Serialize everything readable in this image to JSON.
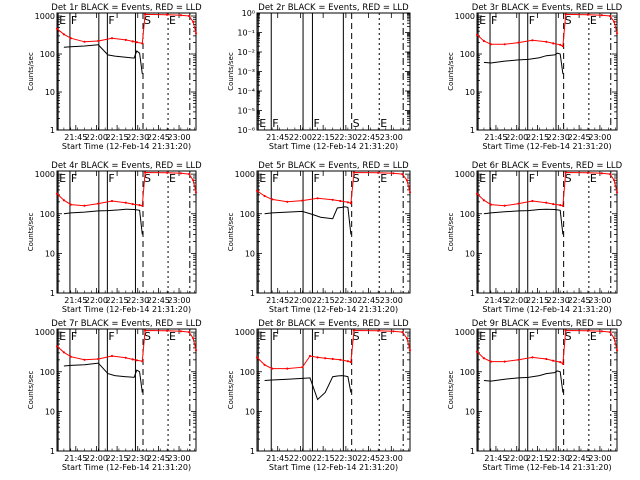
{
  "figure": {
    "start_time": "Start Time (12-Feb-14 21:31:20)",
    "ylabel": "Counts/sec",
    "x_ticks": [
      "21:45",
      "22:00",
      "22:15",
      "22:30",
      "22:45",
      "23:00"
    ],
    "x_tick_minutes": [
      13.67,
      28.67,
      43.67,
      58.67,
      73.67,
      88.67
    ],
    "event_marks": [
      {
        "label": "E",
        "min": 0.8,
        "style": "solid"
      },
      {
        "label": "F",
        "min": 9.4,
        "style": "solid"
      },
      {
        "label": "",
        "min": 30.4,
        "style": "solid"
      },
      {
        "label": "F",
        "min": 36.6,
        "style": "solid"
      },
      {
        "label": "",
        "min": 57.0,
        "style": "solid"
      },
      {
        "label": "S",
        "min": 62.5,
        "style": "dashed"
      },
      {
        "label": "E",
        "min": 80.7,
        "style": "dotted"
      },
      {
        "label": "",
        "min": 96.5,
        "style": "dashdot"
      }
    ],
    "colors": {
      "events": "#000000",
      "lld": "#ff0000"
    }
  },
  "chart_data": [
    {
      "type": "line",
      "title": "Det 1r BLACK = Events, RED = LLD",
      "xlabel": "Start Time (12-Feb-14 21:31:20)",
      "ylabel": "Counts/sec",
      "y_scale": "log",
      "yticks": [
        "1",
        "10",
        "100",
        "1000"
      ],
      "ylim": [
        1,
        1200
      ],
      "xlim_minutes": [
        0,
        101
      ],
      "series": [
        {
          "name": "BLACK = Events",
          "x": [
            5,
            10,
            20,
            30,
            37,
            42,
            50,
            56,
            58,
            60,
            62
          ],
          "y": [
            150,
            155,
            162,
            175,
            95,
            88,
            82,
            78,
            120,
            105,
            30
          ]
        },
        {
          "name": "RED = LLD",
          "x": [
            0,
            5,
            10,
            20,
            30,
            40,
            50,
            55,
            58,
            62,
            64,
            80,
            90,
            96,
            99,
            101
          ],
          "y": [
            460,
            330,
            260,
            210,
            220,
            260,
            235,
            215,
            205,
            190,
            1100,
            1080,
            1050,
            1000,
            700,
            350
          ]
        }
      ]
    },
    {
      "type": "line",
      "title": "Det 2r BLACK = Events, RED = LLD",
      "xlabel": "Start Time (12-Feb-14 21:31:20)",
      "ylabel": "Counts/sec",
      "y_scale": "log",
      "yticks": [
        "10⁻⁶",
        "10⁻⁵",
        "10⁻⁴",
        "10⁻³",
        "10⁻²",
        "10⁻¹",
        "10⁰"
      ],
      "ylim": [
        1e-06,
        1
      ],
      "xlim_minutes": [
        0,
        101
      ],
      "series": []
    },
    {
      "type": "line",
      "title": "Det 3r BLACK = Events, RED = LLD",
      "xlabel": "Start Time (12-Feb-14 21:31:20)",
      "ylabel": "Counts/sec",
      "y_scale": "log",
      "yticks": [
        "1",
        "10",
        "100",
        "1000"
      ],
      "ylim": [
        1,
        1200
      ],
      "xlim_minutes": [
        0,
        101
      ],
      "series": [
        {
          "name": "BLACK = Events",
          "x": [
            5,
            10,
            20,
            30,
            37,
            45,
            50,
            56,
            58,
            60,
            62
          ],
          "y": [
            60,
            58,
            65,
            70,
            72,
            80,
            90,
            95,
            105,
            100,
            30
          ]
        },
        {
          "name": "RED = LLD",
          "x": [
            0,
            5,
            10,
            20,
            30,
            40,
            50,
            55,
            60,
            62,
            64,
            80,
            90,
            96,
            99,
            101
          ],
          "y": [
            320,
            220,
            180,
            180,
            200,
            230,
            210,
            190,
            175,
            160,
            1100,
            1080,
            1050,
            1000,
            700,
            350
          ]
        }
      ]
    },
    {
      "type": "line",
      "title": "Det 4r BLACK = Events, RED = LLD",
      "xlabel": "Start Time (12-Feb-14 21:31:20)",
      "ylabel": "Counts/sec",
      "y_scale": "log",
      "yticks": [
        "1",
        "10",
        "100",
        "1000"
      ],
      "ylim": [
        1,
        1200
      ],
      "xlim_minutes": [
        0,
        101
      ],
      "series": [
        {
          "name": "BLACK = Events",
          "x": [
            5,
            10,
            20,
            30,
            37,
            45,
            50,
            56,
            58,
            60,
            62
          ],
          "y": [
            100,
            105,
            110,
            118,
            120,
            125,
            130,
            128,
            125,
            122,
            30
          ]
        },
        {
          "name": "RED = LLD",
          "x": [
            0,
            5,
            10,
            20,
            30,
            40,
            50,
            55,
            60,
            62,
            64,
            80,
            90,
            96,
            99,
            101
          ],
          "y": [
            320,
            220,
            170,
            160,
            180,
            210,
            190,
            175,
            165,
            160,
            1100,
            1080,
            1050,
            1000,
            700,
            350
          ]
        }
      ]
    },
    {
      "type": "line",
      "title": "Det 5r BLACK = Events, RED = LLD",
      "xlabel": "Start Time (12-Feb-14 21:31:20)",
      "ylabel": "Counts/sec",
      "y_scale": "log",
      "yticks": [
        "1",
        "10",
        "100",
        "1000"
      ],
      "ylim": [
        1,
        1200
      ],
      "xlim_minutes": [
        0,
        101
      ],
      "series": [
        {
          "name": "BLACK = Events",
          "x": [
            5,
            10,
            20,
            30,
            37,
            42,
            50,
            53,
            56,
            58,
            60,
            62
          ],
          "y": [
            100,
            105,
            110,
            115,
            95,
            82,
            75,
            140,
            145,
            150,
            145,
            30
          ]
        },
        {
          "name": "RED = LLD",
          "x": [
            0,
            5,
            10,
            20,
            30,
            40,
            50,
            55,
            60,
            62,
            64,
            80,
            90,
            96,
            99,
            101
          ],
          "y": [
            380,
            280,
            230,
            200,
            215,
            245,
            225,
            210,
            195,
            185,
            1100,
            1080,
            1050,
            1000,
            700,
            350
          ]
        }
      ]
    },
    {
      "type": "line",
      "title": "Det 6r BLACK = Events, RED = LLD",
      "xlabel": "Start Time (12-Feb-14 21:31:20)",
      "ylabel": "Counts/sec",
      "y_scale": "log",
      "yticks": [
        "1",
        "10",
        "100",
        "1000"
      ],
      "ylim": [
        1,
        1200
      ],
      "xlim_minutes": [
        0,
        101
      ],
      "series": [
        {
          "name": "BLACK = Events",
          "x": [
            5,
            10,
            20,
            30,
            37,
            45,
            50,
            56,
            58,
            60,
            62
          ],
          "y": [
            100,
            105,
            112,
            118,
            120,
            128,
            130,
            128,
            125,
            122,
            30
          ]
        },
        {
          "name": "RED = LLD",
          "x": [
            0,
            5,
            10,
            20,
            30,
            40,
            50,
            55,
            60,
            62,
            64,
            80,
            90,
            96,
            99,
            101
          ],
          "y": [
            320,
            220,
            170,
            160,
            180,
            210,
            190,
            175,
            165,
            160,
            1100,
            1080,
            1050,
            1000,
            700,
            350
          ]
        }
      ]
    },
    {
      "type": "line",
      "title": "Det 7r BLACK = Events, RED = LLD",
      "xlabel": "Start Time (12-Feb-14 21:31:20)",
      "ylabel": "Counts/sec",
      "y_scale": "log",
      "yticks": [
        "1",
        "10",
        "100",
        "1000"
      ],
      "ylim": [
        1,
        1200
      ],
      "xlim_minutes": [
        0,
        101
      ],
      "series": [
        {
          "name": "BLACK = Events",
          "x": [
            5,
            10,
            20,
            30,
            37,
            42,
            50,
            56,
            58,
            60,
            62
          ],
          "y": [
            140,
            145,
            150,
            165,
            90,
            80,
            75,
            72,
            110,
            100,
            30
          ]
        },
        {
          "name": "RED = LLD",
          "x": [
            0,
            5,
            10,
            20,
            30,
            40,
            50,
            55,
            58,
            62,
            64,
            80,
            90,
            96,
            99,
            101
          ],
          "y": [
            440,
            310,
            240,
            200,
            210,
            250,
            225,
            205,
            195,
            185,
            1100,
            1080,
            1050,
            1000,
            700,
            350
          ]
        }
      ]
    },
    {
      "type": "line",
      "title": "Det 8r BLACK = Events, RED = LLD",
      "xlabel": "Start Time (12-Feb-14 21:31:20)",
      "ylabel": "Counts/sec",
      "y_scale": "log",
      "yticks": [
        "1",
        "10",
        "100",
        "1000"
      ],
      "ylim": [
        1,
        1200
      ],
      "xlim_minutes": [
        0,
        101
      ],
      "series": [
        {
          "name": "BLACK = Events",
          "x": [
            5,
            10,
            20,
            30,
            35,
            40,
            45,
            50,
            53,
            56,
            58,
            60,
            62
          ],
          "y": [
            60,
            62,
            65,
            68,
            70,
            20,
            30,
            75,
            78,
            80,
            78,
            75,
            30
          ]
        },
        {
          "name": "RED = LLD",
          "x": [
            0,
            5,
            10,
            20,
            30,
            35,
            40,
            45,
            50,
            55,
            60,
            62,
            64,
            80,
            90,
            96,
            99,
            101
          ],
          "y": [
            230,
            150,
            120,
            120,
            130,
            250,
            230,
            220,
            210,
            200,
            185,
            175,
            1100,
            1080,
            1050,
            1000,
            700,
            350
          ]
        }
      ]
    },
    {
      "type": "line",
      "title": "Det 9r BLACK = Events, RED = LLD",
      "xlabel": "Start Time (12-Feb-14 21:31:20)",
      "ylabel": "Counts/sec",
      "y_scale": "log",
      "yticks": [
        "1",
        "10",
        "100",
        "1000"
      ],
      "ylim": [
        1,
        1200
      ],
      "xlim_minutes": [
        0,
        101
      ],
      "series": [
        {
          "name": "BLACK = Events",
          "x": [
            5,
            10,
            20,
            30,
            37,
            45,
            50,
            56,
            58,
            60,
            62
          ],
          "y": [
            60,
            58,
            65,
            70,
            72,
            80,
            90,
            95,
            105,
            100,
            30
          ]
        },
        {
          "name": "RED = LLD",
          "x": [
            0,
            5,
            10,
            20,
            30,
            40,
            50,
            55,
            60,
            62,
            64,
            80,
            90,
            96,
            99,
            101
          ],
          "y": [
            320,
            220,
            180,
            180,
            200,
            230,
            210,
            190,
            175,
            160,
            1100,
            1080,
            1050,
            1000,
            700,
            350
          ]
        }
      ]
    }
  ]
}
